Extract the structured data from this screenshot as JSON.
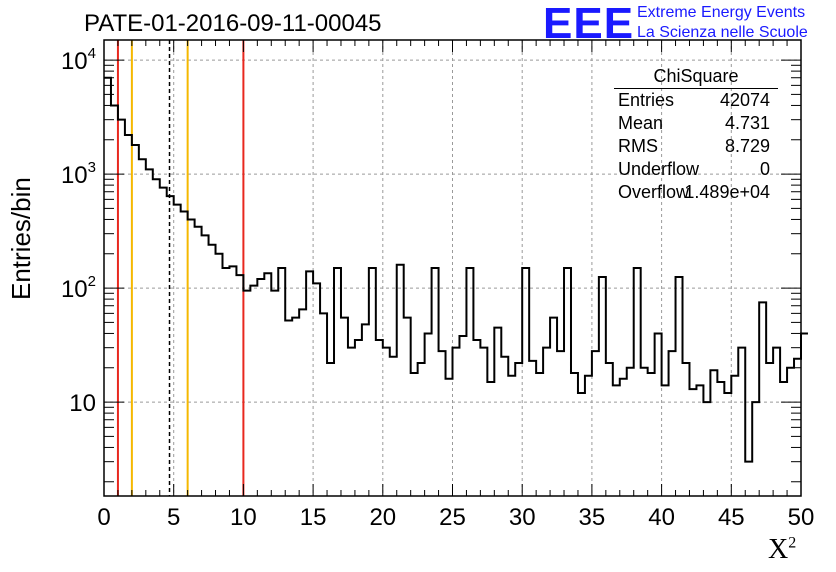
{
  "title": "PATE-01-2016-09-11-00045",
  "logo": {
    "mark": "EEE",
    "line1": "Extreme Energy Events",
    "line2": "La Scienza nelle Scuole"
  },
  "stats": {
    "name": "ChiSquare",
    "rows": [
      {
        "key": "Entries",
        "value": "42074"
      },
      {
        "key": "Mean",
        "value": "4.731"
      },
      {
        "key": "RMS",
        "value": "8.729"
      },
      {
        "key": "Underflow",
        "value": "0"
      },
      {
        "key": "Overflow",
        "value": "1.489e+04"
      }
    ]
  },
  "colors": {
    "red": "#e8281e",
    "orange": "#f5b800",
    "line": "#000000",
    "grid": "#9a9a9a"
  },
  "chart_data": {
    "type": "histogram",
    "title": "PATE-01-2016-09-11-00045",
    "xlabel": "X",
    "xlabel_sup": "2",
    "ylabel": "Entries/bin",
    "xlim": [
      0,
      50
    ],
    "ylim": [
      1.5,
      15000
    ],
    "yscale": "log",
    "grid": true,
    "bin_width": 0.5,
    "x_ticks": [
      "0",
      "5",
      "10",
      "15",
      "20",
      "25",
      "30",
      "35",
      "40",
      "45",
      "50"
    ],
    "y_ticks": [
      {
        "value": 10,
        "base": "10",
        "exp": ""
      },
      {
        "value": 100,
        "base": "10",
        "exp": "2"
      },
      {
        "value": 1000,
        "base": "10",
        "exp": "3"
      },
      {
        "value": 10000,
        "base": "10",
        "exp": "4"
      }
    ],
    "values": [
      7000,
      4000,
      3000,
      2200,
      1800,
      1350,
      1100,
      900,
      760,
      640,
      540,
      470,
      400,
      345,
      290,
      240,
      200,
      150,
      155,
      130,
      95,
      105,
      120,
      135,
      95,
      150,
      52,
      55,
      65,
      140,
      110,
      60,
      22,
      150,
      55,
      30,
      35,
      48,
      150,
      35,
      30,
      25,
      160,
      55,
      18,
      22,
      40,
      150,
      28,
      16,
      30,
      38,
      150,
      35,
      30,
      15,
      45,
      25,
      17,
      22,
      150,
      23,
      18,
      30,
      55,
      28,
      150,
      18,
      12,
      17,
      28,
      125,
      22,
      14,
      16,
      20,
      150,
      20,
      18,
      40,
      14,
      28,
      125,
      22,
      13,
      14,
      10,
      19,
      15,
      12,
      17,
      30,
      3,
      10,
      75,
      22,
      30,
      15,
      20,
      24,
      40
    ]
  },
  "markers": [
    {
      "x": 1.0,
      "color": "red",
      "dashed": false
    },
    {
      "x": 2.0,
      "color": "orange",
      "dashed": false
    },
    {
      "x": 4.7,
      "color": "black",
      "dashed": true
    },
    {
      "x": 6.0,
      "color": "orange",
      "dashed": false
    },
    {
      "x": 10.0,
      "color": "red",
      "dashed": false
    }
  ]
}
